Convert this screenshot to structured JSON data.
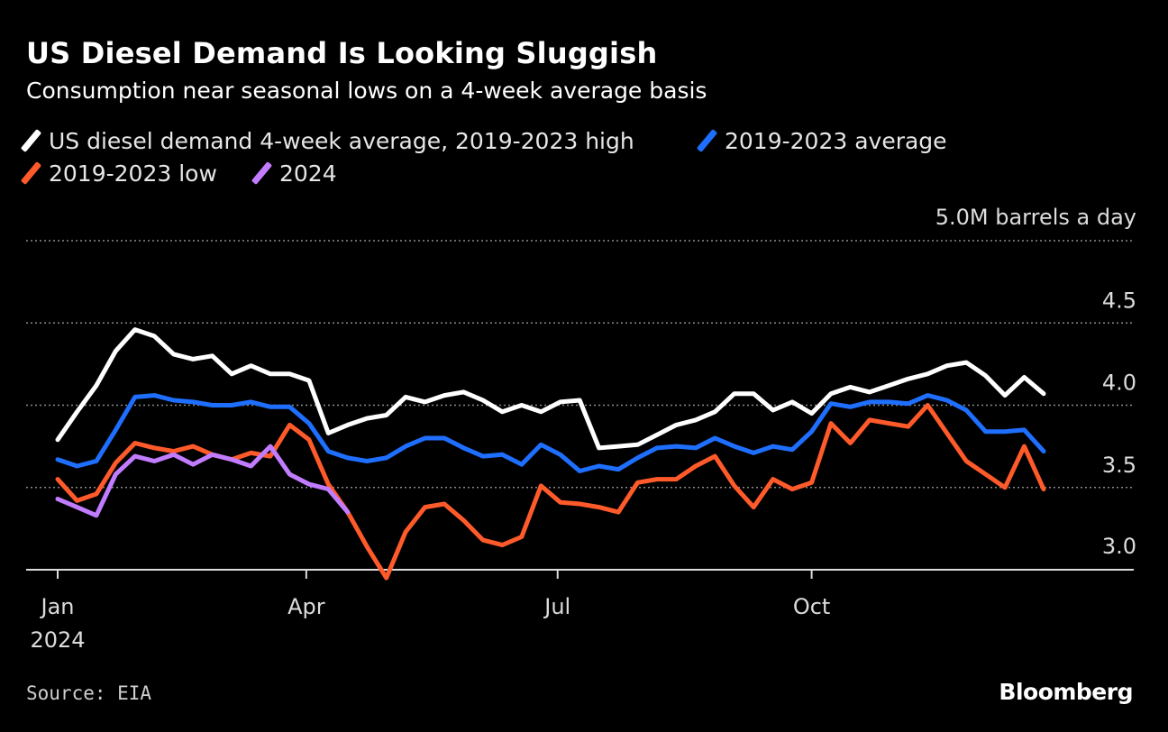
{
  "header": {
    "title": "US Diesel Demand Is Looking Sluggish",
    "subtitle": "Consumption near seasonal lows on a 4-week average basis"
  },
  "legend": [
    {
      "label": "US diesel demand 4-week average, 2019-2023 high",
      "color": "#ffffff"
    },
    {
      "label": "2019-2023 average",
      "color": "#1f6fff"
    },
    {
      "label": "2019-2023 low",
      "color": "#ff5a2a"
    },
    {
      "label": "2024",
      "color": "#c17cff"
    }
  ],
  "chart_data": {
    "type": "line",
    "title": "US Diesel Demand Is Looking Sluggish",
    "unit_label": "5.0M barrels a day",
    "ylim": [
      3.0,
      5.0
    ],
    "yticks": [
      {
        "value": 3.0,
        "label": "3.0"
      },
      {
        "value": 3.5,
        "label": "3.5"
      },
      {
        "value": 4.0,
        "label": "4.0"
      },
      {
        "value": 4.5,
        "label": "4.5"
      },
      {
        "value": 5.0,
        "label": "5.0M barrels a day"
      }
    ],
    "x_range_weeks": [
      0,
      53
    ],
    "xticks": [
      {
        "week": 0,
        "label": "Jan",
        "sublabel": "2024"
      },
      {
        "week": 12.86,
        "label": "Apr",
        "sublabel": ""
      },
      {
        "week": 25.86,
        "label": "Jul",
        "sublabel": ""
      },
      {
        "week": 39,
        "label": "Oct",
        "sublabel": ""
      }
    ],
    "series": [
      {
        "name": "US diesel demand 4-week average, 2019-2023 high",
        "color": "#ffffff",
        "x": [
          0,
          1,
          2,
          3,
          4,
          5,
          6,
          7,
          8,
          9,
          10,
          11,
          12,
          13,
          14,
          15,
          16,
          17,
          18,
          19,
          20,
          21,
          22,
          23,
          24,
          25,
          26,
          27,
          28,
          29,
          30,
          31,
          32,
          33,
          34,
          35,
          36,
          37,
          38,
          39,
          40,
          41,
          42,
          43,
          44,
          45,
          46,
          47,
          48,
          49,
          50,
          51
        ],
        "values": [
          3.79,
          3.96,
          4.12,
          4.33,
          4.46,
          4.42,
          4.31,
          4.28,
          4.3,
          4.19,
          4.24,
          4.19,
          4.19,
          4.15,
          3.83,
          3.88,
          3.92,
          3.94,
          4.05,
          4.02,
          4.06,
          4.08,
          4.03,
          3.96,
          4.0,
          3.96,
          4.02,
          4.03,
          3.74,
          3.75,
          3.76,
          3.82,
          3.88,
          3.91,
          3.96,
          4.07,
          4.07,
          3.97,
          4.02,
          3.95,
          4.07,
          4.11,
          4.08,
          4.12,
          4.16,
          4.19,
          4.24,
          4.26,
          4.18,
          4.06,
          4.17,
          4.07
        ]
      },
      {
        "name": "2019-2023 average",
        "color": "#1f6fff",
        "x": [
          0,
          1,
          2,
          3,
          4,
          5,
          6,
          7,
          8,
          9,
          10,
          11,
          12,
          13,
          14,
          15,
          16,
          17,
          18,
          19,
          20,
          21,
          22,
          23,
          24,
          25,
          26,
          27,
          28,
          29,
          30,
          31,
          32,
          33,
          34,
          35,
          36,
          37,
          38,
          39,
          40,
          41,
          42,
          43,
          44,
          45,
          46,
          47,
          48,
          49,
          50,
          51
        ],
        "values": [
          3.67,
          3.63,
          3.66,
          3.85,
          4.05,
          4.06,
          4.03,
          4.02,
          4.0,
          4.0,
          4.02,
          3.99,
          3.99,
          3.89,
          3.72,
          3.68,
          3.66,
          3.68,
          3.75,
          3.8,
          3.8,
          3.74,
          3.69,
          3.7,
          3.64,
          3.76,
          3.7,
          3.6,
          3.63,
          3.61,
          3.68,
          3.74,
          3.75,
          3.74,
          3.8,
          3.75,
          3.71,
          3.75,
          3.73,
          3.84,
          4.01,
          3.99,
          4.02,
          4.02,
          4.01,
          4.06,
          4.03,
          3.97,
          3.84,
          3.84,
          3.85,
          3.72
        ]
      },
      {
        "name": "2019-2023 low",
        "color": "#ff5a2a",
        "x": [
          0,
          1,
          2,
          3,
          4,
          5,
          6,
          7,
          8,
          9,
          10,
          11,
          12,
          13,
          14,
          15,
          16,
          17,
          18,
          19,
          20,
          21,
          22,
          23,
          24,
          25,
          26,
          27,
          28,
          29,
          30,
          31,
          32,
          33,
          34,
          35,
          36,
          37,
          38,
          39,
          40,
          41,
          42,
          43,
          44,
          45,
          46,
          47,
          48,
          49,
          50,
          51
        ],
        "values": [
          3.55,
          3.42,
          3.46,
          3.65,
          3.77,
          3.74,
          3.72,
          3.75,
          3.7,
          3.67,
          3.71,
          3.69,
          3.88,
          3.79,
          3.52,
          3.35,
          3.14,
          2.95,
          3.23,
          3.38,
          3.4,
          3.3,
          3.18,
          3.15,
          3.2,
          3.51,
          3.41,
          3.4,
          3.38,
          3.35,
          3.53,
          3.55,
          3.55,
          3.63,
          3.69,
          3.51,
          3.38,
          3.55,
          3.49,
          3.53,
          3.89,
          3.77,
          3.91,
          3.89,
          3.87,
          4.0,
          3.83,
          3.66,
          3.58,
          3.5,
          3.75,
          3.49
        ]
      },
      {
        "name": "2024",
        "color": "#c17cff",
        "x": [
          0,
          1,
          2,
          3,
          4,
          5,
          6,
          7,
          8,
          9,
          10,
          11,
          12,
          13,
          14,
          15
        ],
        "values": [
          3.43,
          3.38,
          3.33,
          3.58,
          3.69,
          3.66,
          3.7,
          3.64,
          3.7,
          3.67,
          3.63,
          3.75,
          3.58,
          3.52,
          3.49,
          3.35
        ]
      }
    ],
    "source": "Source: EIA"
  },
  "footer": {
    "source": "Source: EIA",
    "brand": "Bloomberg"
  }
}
